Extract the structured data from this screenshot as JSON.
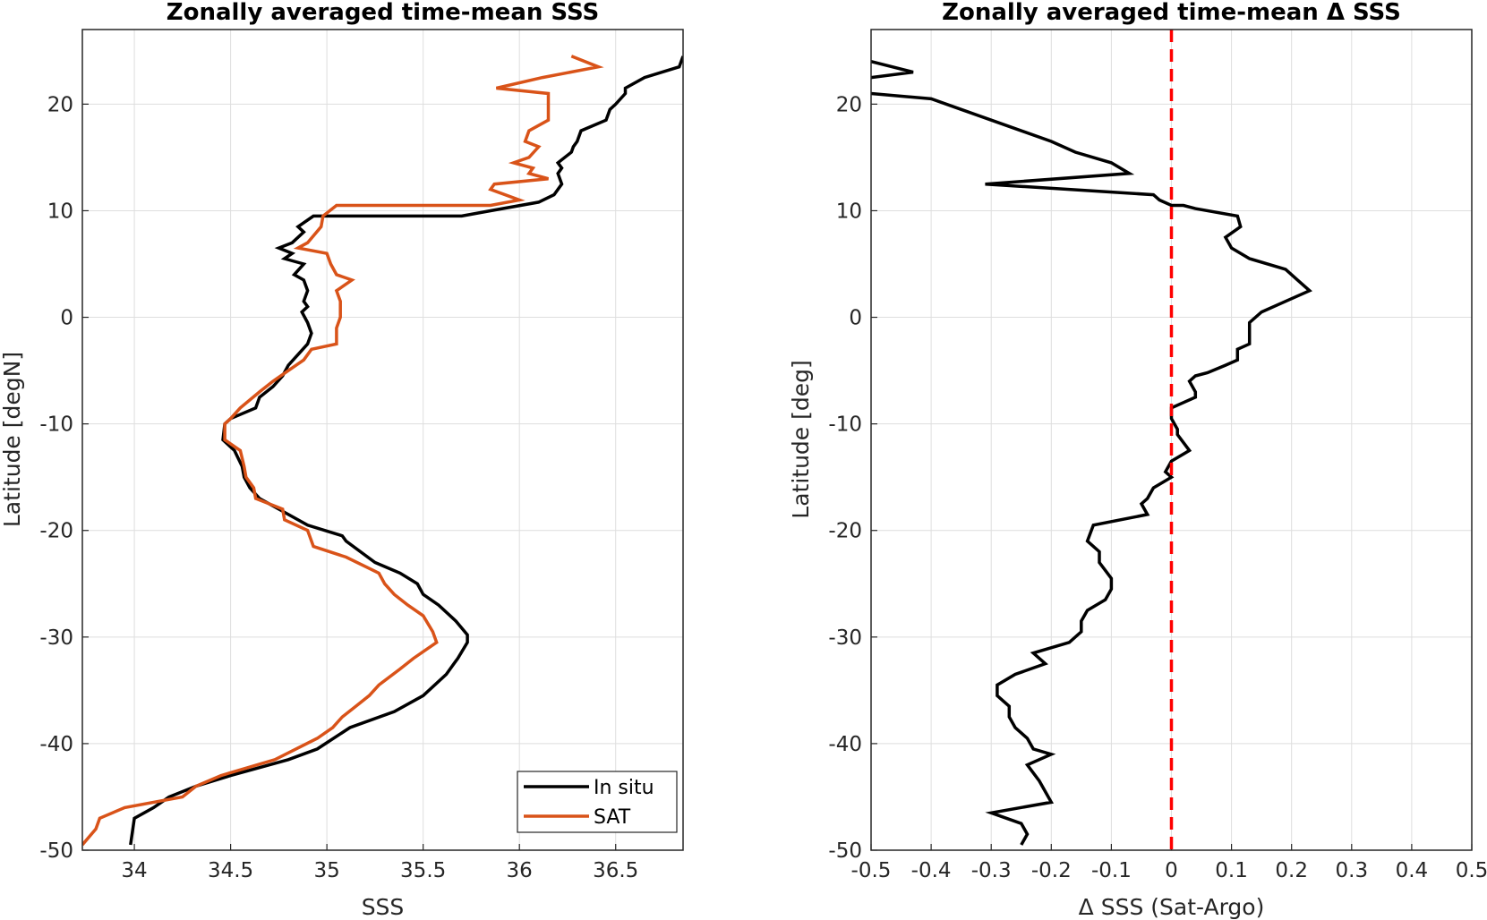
{
  "chart_data": [
    {
      "type": "line",
      "title": "Zonally averaged time-mean SSS",
      "xlabel": "SSS",
      "ylabel": "Latitude [degN]",
      "xlim": [
        33.73,
        36.85
      ],
      "ylim": [
        -50,
        27
      ],
      "xticks": [
        34,
        34.5,
        35,
        35.5,
        36,
        36.5
      ],
      "xtick_labels": [
        "34",
        "34.5",
        "35",
        "35.5",
        "36",
        "36.5"
      ],
      "yticks": [
        -50,
        -40,
        -30,
        -20,
        -10,
        0,
        10,
        20
      ],
      "ytick_labels": [
        "-50",
        "-40",
        "-30",
        "-20",
        "-10",
        "0",
        "10",
        "20"
      ],
      "grid": true,
      "legend_position": "bottom-right",
      "series": [
        {
          "name": "In situ",
          "color": "#000000",
          "points": [
            [
              36.85,
              24.5
            ],
            [
              36.83,
              23.5
            ],
            [
              36.65,
              22.5
            ],
            [
              36.55,
              21.5
            ],
            [
              36.55,
              21
            ],
            [
              36.5,
              20
            ],
            [
              36.47,
              19.5
            ],
            [
              36.45,
              18.5
            ],
            [
              36.32,
              17.5
            ],
            [
              36.3,
              16.5
            ],
            [
              36.28,
              16
            ],
            [
              36.27,
              15.5
            ],
            [
              36.2,
              14.5
            ],
            [
              36.22,
              14
            ],
            [
              36.2,
              13.5
            ],
            [
              36.22,
              12.5
            ],
            [
              36.18,
              11.5
            ],
            [
              36.1,
              10.8
            ],
            [
              35.85,
              10
            ],
            [
              35.7,
              9.5
            ],
            [
              34.93,
              9.5
            ],
            [
              34.85,
              8.5
            ],
            [
              34.88,
              8
            ],
            [
              34.82,
              7
            ],
            [
              34.75,
              6.5
            ],
            [
              34.82,
              6
            ],
            [
              34.78,
              5.5
            ],
            [
              34.88,
              5
            ],
            [
              34.83,
              4
            ],
            [
              34.88,
              3.5
            ],
            [
              34.9,
              2.5
            ],
            [
              34.88,
              1.5
            ],
            [
              34.9,
              1
            ],
            [
              34.87,
              0.5
            ],
            [
              34.9,
              -0.5
            ],
            [
              34.92,
              -1.5
            ],
            [
              34.9,
              -2.5
            ],
            [
              34.85,
              -3.5
            ],
            [
              34.8,
              -4.5
            ],
            [
              34.77,
              -5.5
            ],
            [
              34.72,
              -6.5
            ],
            [
              34.65,
              -7.5
            ],
            [
              34.63,
              -8.5
            ],
            [
              34.5,
              -9.5
            ],
            [
              34.47,
              -10
            ],
            [
              34.46,
              -11.5
            ],
            [
              34.52,
              -12.5
            ],
            [
              34.56,
              -14
            ],
            [
              34.57,
              -15
            ],
            [
              34.6,
              -16
            ],
            [
              34.65,
              -17
            ],
            [
              34.75,
              -18
            ],
            [
              34.9,
              -19.5
            ],
            [
              35.08,
              -20.5
            ],
            [
              35.1,
              -21
            ],
            [
              35.25,
              -23
            ],
            [
              35.38,
              -24
            ],
            [
              35.47,
              -25
            ],
            [
              35.5,
              -26
            ],
            [
              35.58,
              -27
            ],
            [
              35.67,
              -28.5
            ],
            [
              35.73,
              -29.8
            ],
            [
              35.73,
              -30.5
            ],
            [
              35.68,
              -32
            ],
            [
              35.62,
              -33.5
            ],
            [
              35.5,
              -35.5
            ],
            [
              35.35,
              -37
            ],
            [
              35.12,
              -38.5
            ],
            [
              34.95,
              -40.5
            ],
            [
              34.8,
              -41.5
            ],
            [
              34.5,
              -43
            ],
            [
              34.32,
              -44
            ],
            [
              34.18,
              -45
            ],
            [
              34.1,
              -46
            ],
            [
              34,
              -47
            ],
            [
              33.98,
              -49.5
            ]
          ]
        },
        {
          "name": "SAT",
          "color": "#d95319",
          "points": [
            [
              36.27,
              24.5
            ],
            [
              36.41,
              23.5
            ],
            [
              36.12,
              22.5
            ],
            [
              35.88,
              21.5
            ],
            [
              36.15,
              21
            ],
            [
              36.15,
              19.5
            ],
            [
              36.15,
              18.5
            ],
            [
              36.05,
              17.5
            ],
            [
              36.03,
              16.5
            ],
            [
              36.1,
              16
            ],
            [
              36.05,
              15
            ],
            [
              35.97,
              14.5
            ],
            [
              36.07,
              14
            ],
            [
              36.05,
              13.5
            ],
            [
              36.15,
              13
            ],
            [
              35.87,
              12.5
            ],
            [
              35.85,
              12
            ],
            [
              36,
              11
            ],
            [
              35.85,
              10.5
            ],
            [
              35.05,
              10.5
            ],
            [
              34.98,
              9.5
            ],
            [
              34.97,
              8.5
            ],
            [
              34.9,
              7
            ],
            [
              34.85,
              6.5
            ],
            [
              35,
              6
            ],
            [
              35.02,
              5
            ],
            [
              35.05,
              4
            ],
            [
              35.13,
              3.5
            ],
            [
              35.05,
              2.5
            ],
            [
              35.07,
              1.5
            ],
            [
              35.07,
              0
            ],
            [
              35.05,
              -1
            ],
            [
              35.05,
              -2.5
            ],
            [
              34.92,
              -3
            ],
            [
              34.88,
              -4
            ],
            [
              34.8,
              -5
            ],
            [
              34.72,
              -6
            ],
            [
              34.65,
              -7
            ],
            [
              34.55,
              -8.5
            ],
            [
              34.5,
              -9.5
            ],
            [
              34.47,
              -10
            ],
            [
              34.47,
              -11.5
            ],
            [
              34.55,
              -12.5
            ],
            [
              34.57,
              -14
            ],
            [
              34.58,
              -15
            ],
            [
              34.62,
              -16
            ],
            [
              34.63,
              -17
            ],
            [
              34.77,
              -18
            ],
            [
              34.78,
              -19
            ],
            [
              34.9,
              -20
            ],
            [
              34.93,
              -21.5
            ],
            [
              35.1,
              -22.5
            ],
            [
              35.27,
              -24
            ],
            [
              35.3,
              -25
            ],
            [
              35.35,
              -26
            ],
            [
              35.42,
              -27
            ],
            [
              35.5,
              -28
            ],
            [
              35.55,
              -29.5
            ],
            [
              35.57,
              -30.5
            ],
            [
              35.45,
              -32
            ],
            [
              35.38,
              -33
            ],
            [
              35.27,
              -34.5
            ],
            [
              35.22,
              -35.5
            ],
            [
              35.15,
              -36.5
            ],
            [
              35.08,
              -37.5
            ],
            [
              35.03,
              -38.5
            ],
            [
              34.95,
              -39.5
            ],
            [
              34.73,
              -41.5
            ],
            [
              34.45,
              -43
            ],
            [
              34.32,
              -44
            ],
            [
              34.25,
              -45
            ],
            [
              33.95,
              -46
            ],
            [
              33.82,
              -47
            ],
            [
              33.8,
              -48
            ],
            [
              33.73,
              -49.5
            ]
          ]
        }
      ]
    },
    {
      "type": "line",
      "title": "Zonally averaged time-mean Δ SSS",
      "xlabel": "Δ SSS (Sat-Argo)",
      "ylabel": "Latitude [deg]",
      "xlim": [
        -0.5,
        0.5
      ],
      "ylim": [
        -50,
        27
      ],
      "xticks": [
        -0.5,
        -0.4,
        -0.3,
        -0.2,
        -0.1,
        0,
        0.1,
        0.2,
        0.3,
        0.4,
        0.5
      ],
      "xtick_labels": [
        "-0.5",
        "-0.4",
        "-0.3",
        "-0.2",
        "-0.1",
        "0",
        "0.1",
        "0.2",
        "0.3",
        "0.4",
        "0.5"
      ],
      "yticks": [
        -50,
        -40,
        -30,
        -20,
        -10,
        0,
        10,
        20
      ],
      "ytick_labels": [
        "-50",
        "-40",
        "-30",
        "-20",
        "-10",
        "0",
        "10",
        "20"
      ],
      "grid": true,
      "reference_line": {
        "x": 0,
        "color": "#ff0000",
        "style": "dashed"
      },
      "series": [
        {
          "color": "#000000",
          "points": [
            [
              -0.5,
              24
            ],
            [
              -0.43,
              23
            ],
            [
              -0.5,
              22.5
            ],
            [
              -0.55,
              21.5
            ],
            [
              -0.5,
              21
            ],
            [
              -0.4,
              20.5
            ],
            [
              -0.35,
              19.5
            ],
            [
              -0.3,
              18.5
            ],
            [
              -0.2,
              16.5
            ],
            [
              -0.16,
              15.5
            ],
            [
              -0.1,
              14.5
            ],
            [
              -0.07,
              13.5
            ],
            [
              -0.31,
              12.5
            ],
            [
              -0.03,
              11.5
            ],
            [
              -0.02,
              11
            ],
            [
              0,
              10.5
            ],
            [
              0.02,
              10.5
            ],
            [
              0.04,
              10.2
            ],
            [
              0.11,
              9.5
            ],
            [
              0.115,
              8.5
            ],
            [
              0.09,
              7.5
            ],
            [
              0.1,
              6.5
            ],
            [
              0.13,
              5.5
            ],
            [
              0.19,
              4.5
            ],
            [
              0.21,
              3.5
            ],
            [
              0.23,
              2.5
            ],
            [
              0.19,
              1.5
            ],
            [
              0.15,
              0.5
            ],
            [
              0.13,
              -0.5
            ],
            [
              0.13,
              -1.5
            ],
            [
              0.13,
              -2.5
            ],
            [
              0.11,
              -3
            ],
            [
              0.11,
              -4
            ],
            [
              0.09,
              -4.5
            ],
            [
              0.06,
              -5.2
            ],
            [
              0.04,
              -5.5
            ],
            [
              0.03,
              -6
            ],
            [
              0.04,
              -7
            ],
            [
              0.04,
              -7.5
            ],
            [
              0.02,
              -8
            ],
            [
              0,
              -8.5
            ],
            [
              0,
              -9.5
            ],
            [
              0.01,
              -10.5
            ],
            [
              0.01,
              -11
            ],
            [
              0.03,
              -12.5
            ],
            [
              0,
              -13.5
            ],
            [
              -0.01,
              -14.5
            ],
            [
              0,
              -15
            ],
            [
              -0.03,
              -16
            ],
            [
              -0.04,
              -17
            ],
            [
              -0.05,
              -17.5
            ],
            [
              -0.04,
              -18.5
            ],
            [
              -0.13,
              -19.5
            ],
            [
              -0.14,
              -21
            ],
            [
              -0.12,
              -22
            ],
            [
              -0.12,
              -23
            ],
            [
              -0.1,
              -24.5
            ],
            [
              -0.1,
              -25.5
            ],
            [
              -0.11,
              -26.5
            ],
            [
              -0.14,
              -27.5
            ],
            [
              -0.15,
              -28.5
            ],
            [
              -0.15,
              -29.5
            ],
            [
              -0.17,
              -30.5
            ],
            [
              -0.23,
              -31.5
            ],
            [
              -0.21,
              -32.5
            ],
            [
              -0.26,
              -33.5
            ],
            [
              -0.29,
              -34.5
            ],
            [
              -0.29,
              -35.5
            ],
            [
              -0.27,
              -36.5
            ],
            [
              -0.27,
              -37.5
            ],
            [
              -0.26,
              -38.5
            ],
            [
              -0.24,
              -39.5
            ],
            [
              -0.23,
              -40.5
            ],
            [
              -0.2,
              -41
            ],
            [
              -0.24,
              -42
            ],
            [
              -0.22,
              -43.5
            ],
            [
              -0.21,
              -44.5
            ],
            [
              -0.2,
              -45.5
            ],
            [
              -0.3,
              -46.5
            ],
            [
              -0.25,
              -47.5
            ],
            [
              -0.24,
              -48.5
            ],
            [
              -0.25,
              -49.5
            ]
          ]
        }
      ]
    }
  ],
  "legend": {
    "entries": [
      "In situ",
      "SAT"
    ]
  }
}
